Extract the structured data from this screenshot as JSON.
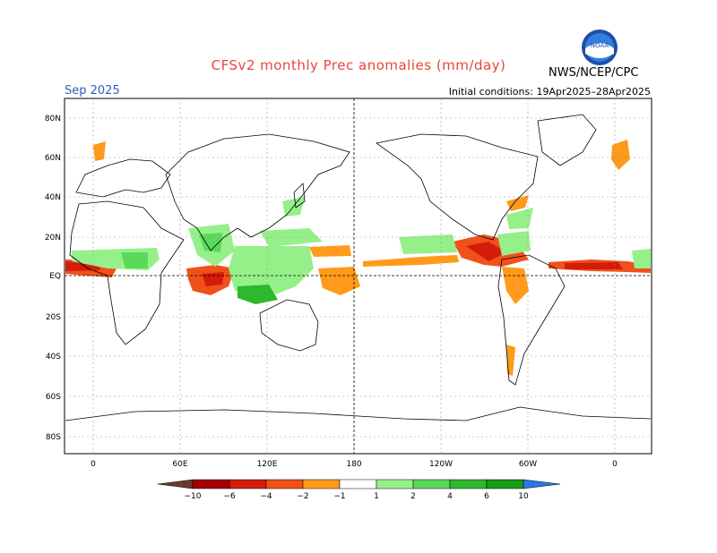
{
  "header": {
    "title": "CFSv2 monthly Prec anomalies (mm/day)",
    "organization": "NWS/NCEP/CPC",
    "logo_text": "NOAA",
    "month": "Sep 2025",
    "initial_conditions": "Initial conditions: 19Apr2025–28Apr2025"
  },
  "axes": {
    "lat_labels": [
      "80N",
      "60N",
      "40N",
      "20N",
      "EQ",
      "20S",
      "40S",
      "60S",
      "80S"
    ],
    "lon_labels": [
      "0",
      "60E",
      "120E",
      "180",
      "120W",
      "60W",
      "0"
    ]
  },
  "colorbar": {
    "ticks": [
      "−10",
      "−6",
      "−4",
      "−2",
      "−1",
      "1",
      "2",
      "4",
      "6",
      "10"
    ],
    "colors": {
      "lt_minus10": "#6b3a2a",
      "m10_m6": "#a50000",
      "m6_m4": "#d41c0a",
      "m4_m2": "#f0501a",
      "m2_m1": "#ff9a1a",
      "neutral": "#ffffff",
      "p1_p2": "#96f08a",
      "p2_p4": "#5ad85a",
      "p4_p6": "#2eb82e",
      "p6_p10": "#179c17",
      "gt_10": "#2a78e6"
    }
  }
}
